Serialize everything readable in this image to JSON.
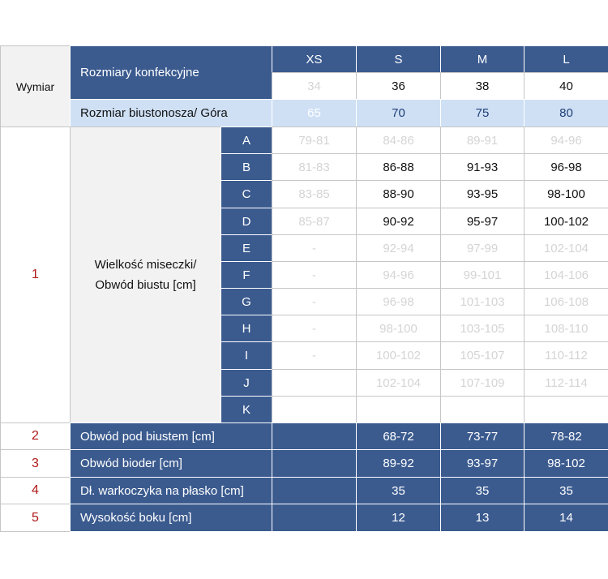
{
  "header": {
    "wymiar": "Wymiar",
    "rozmiary": "Rozmiary konfekcyjne",
    "biustonosz": "Rozmiar biustonosza/ Góra"
  },
  "sizes": [
    {
      "label": "XS",
      "konf": "34",
      "bra": "65"
    },
    {
      "label": "S",
      "konf": "36",
      "bra": "70"
    },
    {
      "label": "M",
      "konf": "38",
      "bra": "75"
    },
    {
      "label": "L",
      "konf": "40",
      "bra": "80"
    }
  ],
  "cup": {
    "num": "1",
    "label_line1": "Wielkość miseczki/",
    "label_line2": "Obwód biustu [cm]",
    "rows": [
      {
        "letter": "A",
        "values": [
          "79-81",
          "84-86",
          "89-91",
          "94-96"
        ]
      },
      {
        "letter": "B",
        "values": [
          "81-83",
          "86-88",
          "91-93",
          "96-98"
        ]
      },
      {
        "letter": "C",
        "values": [
          "83-85",
          "88-90",
          "93-95",
          "98-100"
        ]
      },
      {
        "letter": "D",
        "values": [
          "85-87",
          "90-92",
          "95-97",
          "100-102"
        ]
      },
      {
        "letter": "E",
        "values": [
          "-",
          "92-94",
          "97-99",
          "102-104"
        ]
      },
      {
        "letter": "F",
        "values": [
          "-",
          "94-96",
          "99-101",
          "104-106"
        ]
      },
      {
        "letter": "G",
        "values": [
          "-",
          "96-98",
          "101-103",
          "106-108"
        ]
      },
      {
        "letter": "H",
        "values": [
          "-",
          "98-100",
          "103-105",
          "108-110"
        ]
      },
      {
        "letter": "I",
        "values": [
          "-",
          "100-102",
          "105-107",
          "110-112"
        ]
      },
      {
        "letter": "J",
        "values": [
          "",
          "102-104",
          "107-109",
          "112-114"
        ]
      },
      {
        "letter": "K",
        "values": [
          "",
          "",
          "",
          ""
        ]
      }
    ]
  },
  "measures": [
    {
      "num": "2",
      "label": "Obwód pod biustem [cm]",
      "values": [
        "",
        "68-72",
        "73-77",
        "78-82"
      ]
    },
    {
      "num": "3",
      "label": "Obwód bioder [cm]",
      "values": [
        "",
        "89-92",
        "93-97",
        "98-102"
      ]
    },
    {
      "num": "4",
      "label": "Dł. warkoczyka na płasko [cm]",
      "values": [
        "",
        "35",
        "35",
        "35"
      ]
    },
    {
      "num": "5",
      "label": "Wysokość boku [cm]",
      "values": [
        "",
        "12",
        "13",
        "14"
      ]
    }
  ],
  "colors": {
    "dark_blue": "#3b5b8f",
    "light_blue": "#cfe0f5",
    "label_gray": "#f2f2f2",
    "red": "#b01818",
    "faded": "#d4d4d4"
  }
}
